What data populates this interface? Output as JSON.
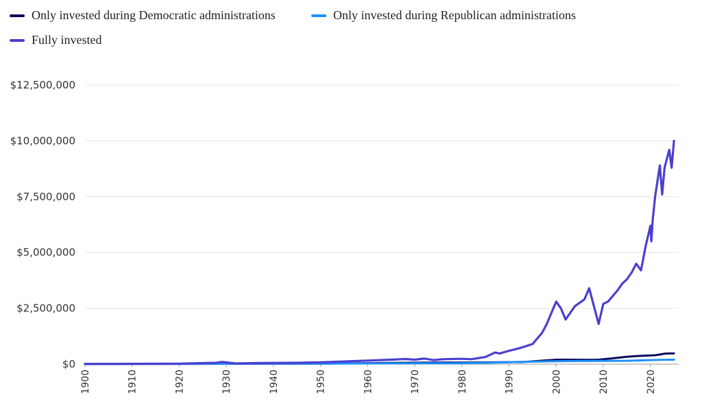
{
  "chart_data": {
    "type": "line",
    "title": "",
    "xlabel": "",
    "ylabel": "",
    "xlim": [
      1900,
      2026
    ],
    "ylim": [
      0,
      12500000
    ],
    "grid": true,
    "legend_position": "top-left",
    "y_ticks": [
      {
        "value": 0,
        "label": "$0"
      },
      {
        "value": 2500000,
        "label": "$2,500,000"
      },
      {
        "value": 5000000,
        "label": "$5,000,000"
      },
      {
        "value": 7500000,
        "label": "$7,500,000"
      },
      {
        "value": 10000000,
        "label": "$10,000,000"
      },
      {
        "value": 12500000,
        "label": "$12,500,000"
      }
    ],
    "x_ticks": [
      "1900",
      "1910",
      "1920",
      "1930",
      "1940",
      "1950",
      "1960",
      "1970",
      "1980",
      "1990",
      "2000",
      "2010",
      "2020"
    ],
    "series": [
      {
        "name": "Only invested during Democratic administrations",
        "color": "#0a0a5a",
        "x": [
          1900,
          1920,
          1933,
          1950,
          1961,
          1969,
          1977,
          1981,
          1993,
          2000,
          2001,
          2008,
          2009,
          2012,
          2015,
          2017,
          2021,
          2022,
          2023,
          2024,
          2025
        ],
        "y": [
          10000,
          12000,
          14000,
          25000,
          45000,
          60000,
          70000,
          70000,
          95000,
          200000,
          200000,
          195000,
          200000,
          260000,
          330000,
          360000,
          400000,
          430000,
          470000,
          480000,
          480000
        ]
      },
      {
        "name": "Only invested during Republican administrations",
        "color": "#1e90ff",
        "x": [
          1900,
          1920,
          1930,
          1950,
          1960,
          1970,
          1980,
          1985,
          1990,
          1995,
          2000,
          2005,
          2008,
          2010,
          2015,
          2018,
          2020,
          2022,
          2025
        ],
        "y": [
          10000,
          11000,
          15000,
          20000,
          30000,
          35000,
          40000,
          60000,
          90000,
          110000,
          130000,
          140000,
          140000,
          145000,
          150000,
          170000,
          180000,
          190000,
          200000
        ]
      },
      {
        "name": "Fully invested",
        "color": "#4b3fcf",
        "x": [
          1900,
          1910,
          1920,
          1928,
          1929,
          1932,
          1937,
          1945,
          1950,
          1955,
          1960,
          1965,
          1968,
          1970,
          1972,
          1974,
          1976,
          1980,
          1982,
          1985,
          1987,
          1988,
          1990,
          1992,
          1995,
          1997,
          1998,
          1999,
          2000,
          2001,
          2002,
          2003,
          2004,
          2006,
          2007,
          2008,
          2009,
          2010,
          2011,
          2013,
          2014,
          2015,
          2016,
          2017,
          2018,
          2019,
          2020,
          2020.2,
          2020.5,
          2021,
          2022,
          2022.5,
          2023,
          2024,
          2024.5,
          2025
        ],
        "y": [
          10000,
          15000,
          20000,
          60000,
          100000,
          30000,
          50000,
          60000,
          80000,
          120000,
          160000,
          200000,
          230000,
          200000,
          250000,
          180000,
          220000,
          240000,
          220000,
          320000,
          520000,
          480000,
          600000,
          700000,
          900000,
          1400000,
          1800000,
          2300000,
          2800000,
          2500000,
          2000000,
          2300000,
          2600000,
          2900000,
          3400000,
          2600000,
          1800000,
          2700000,
          2800000,
          3300000,
          3600000,
          3800000,
          4100000,
          4500000,
          4200000,
          5300000,
          6200000,
          5500000,
          6500000,
          7500000,
          8900000,
          7600000,
          8800000,
          9600000,
          8800000,
          10000000
        ]
      }
    ]
  }
}
